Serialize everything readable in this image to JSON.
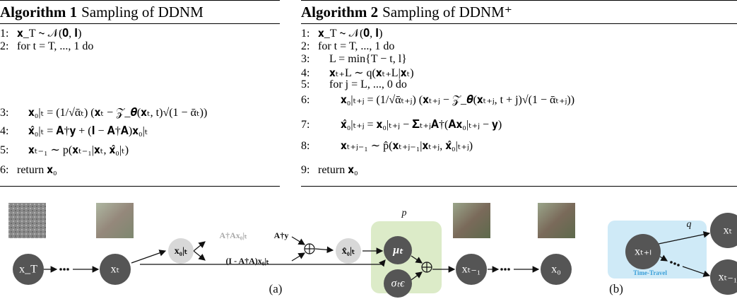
{
  "algorithms": [
    {
      "label": "Algorithm 1",
      "title": "Sampling of DDNM",
      "lines": [
        {
          "num": "1:",
          "text": "𝐱_T ∼ 𝒩(𝟎, 𝐈)"
        },
        {
          "num": "2:",
          "text": "for t = T, ..., 1 do"
        },
        {
          "num": "3:",
          "text": "𝐱₀|ₜ = (1/√ᾱₜ) (𝐱ₜ − 𝒵_𝜽(𝐱ₜ, t)√(1 − ᾱₜ))"
        },
        {
          "num": "4:",
          "text": "𝐱̂₀|ₜ = 𝐀†𝐲 + (𝐈 − 𝐀†𝐀)𝐱₀|ₜ"
        },
        {
          "num": "5:",
          "text": "𝐱ₜ₋₁ ∼ p(𝐱ₜ₋₁|𝐱ₜ, 𝐱̂₀|ₜ)"
        },
        {
          "num": "6:",
          "text": "return 𝐱₀"
        }
      ]
    },
    {
      "label": "Algorithm 2",
      "title": "Sampling of DDNM⁺",
      "lines": [
        {
          "num": "1:",
          "text": "𝐱_T ∼ 𝒩(𝟎, 𝐈)"
        },
        {
          "num": "2:",
          "text": "for t = T, ..., 1 do"
        },
        {
          "num": "3:",
          "text": "L = min{T − t, l}"
        },
        {
          "num": "4:",
          "text": "𝐱ₜ₊L ∼ q(𝐱ₜ₊L|𝐱ₜ)"
        },
        {
          "num": "5:",
          "text": "for j = L, ..., 0 do"
        },
        {
          "num": "6:",
          "text": "𝐱₀|ₜ₊ⱼ = (1/√ᾱₜ₊ⱼ) (𝐱ₜ₊ⱼ − 𝒵_𝜽(𝐱ₜ₊ⱼ, t + j)√(1 − ᾱₜ₊ⱼ))"
        },
        {
          "num": "7:",
          "text": "𝐱̂₀|ₜ₊ⱼ = 𝐱₀|ₜ₊ⱼ − 𝚺ₜ₊ⱼ𝐀†(𝐀𝐱₀|ₜ₊ⱼ − 𝐲)"
        },
        {
          "num": "8:",
          "text": "𝐱ₜ₊ⱼ₋₁ ∼ p̂(𝐱ₜ₊ⱼ₋₁|𝐱ₜ₊ⱼ, 𝐱̂₀|ₜ₊ⱼ)"
        },
        {
          "num": "9:",
          "text": "return 𝐱₀"
        }
      ]
    }
  ],
  "figure_a": {
    "label": "(a)",
    "x_T": "x_T",
    "x_t": "xₜ",
    "x0t": "x₀|ₜ",
    "proj": "A†Ax₀|ₜ",
    "null": "(I - A†A)x₀|ₜ",
    "ay": "A†y",
    "xhat": "x̂₀|ₜ",
    "p": "p",
    "mu": "μₜ",
    "sigma": "σₜϵ",
    "x_tm1": "xₜ₋₁",
    "x_0": "x₀"
  },
  "figure_b": {
    "label": "(b)",
    "x_tl": "xₜ₊ₗ",
    "q": "q",
    "x_t": "xₜ",
    "x_tm1": "xₜ₋₁",
    "box": "Time-Travel"
  }
}
